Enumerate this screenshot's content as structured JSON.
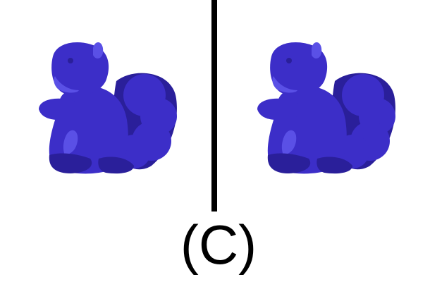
{
  "caption": "(C)",
  "colors": {
    "background": "#ffffff",
    "divider": "#000000",
    "toy_body": "#3c2ec8",
    "toy_shadow": "#2a1f9a",
    "toy_highlight": "#5a50e6",
    "caption_text": "#000000"
  },
  "images": [
    {
      "name": "plush-squirrel-toy-left"
    },
    {
      "name": "plush-squirrel-toy-right"
    }
  ]
}
